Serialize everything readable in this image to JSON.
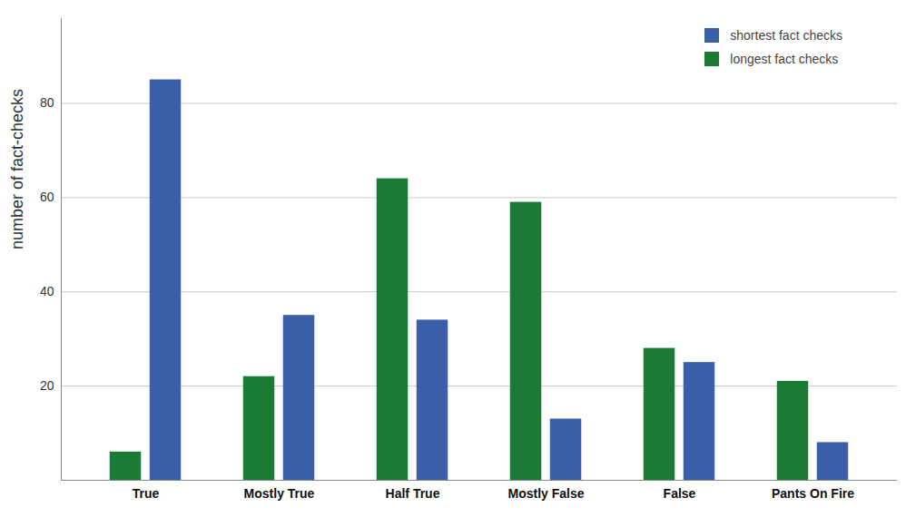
{
  "chart_data": {
    "type": "bar",
    "y_label": "number of fact-checks",
    "categories": [
      "True",
      "Mostly True",
      "Half True",
      "Mostly False",
      "False",
      "Pants On Fire"
    ],
    "series": [
      {
        "name": "shortest fact checks",
        "color": "#3a5ea8",
        "values": [
          85,
          35,
          34,
          13,
          25,
          8
        ]
      },
      {
        "name": "longest fact checks",
        "color": "#1b7a33",
        "values": [
          6,
          22,
          64,
          59,
          28,
          21
        ]
      }
    ],
    "ylim": [
      0,
      98
    ],
    "yticks": [
      20,
      40,
      60,
      80
    ],
    "grid": true,
    "legend": "top-right"
  }
}
